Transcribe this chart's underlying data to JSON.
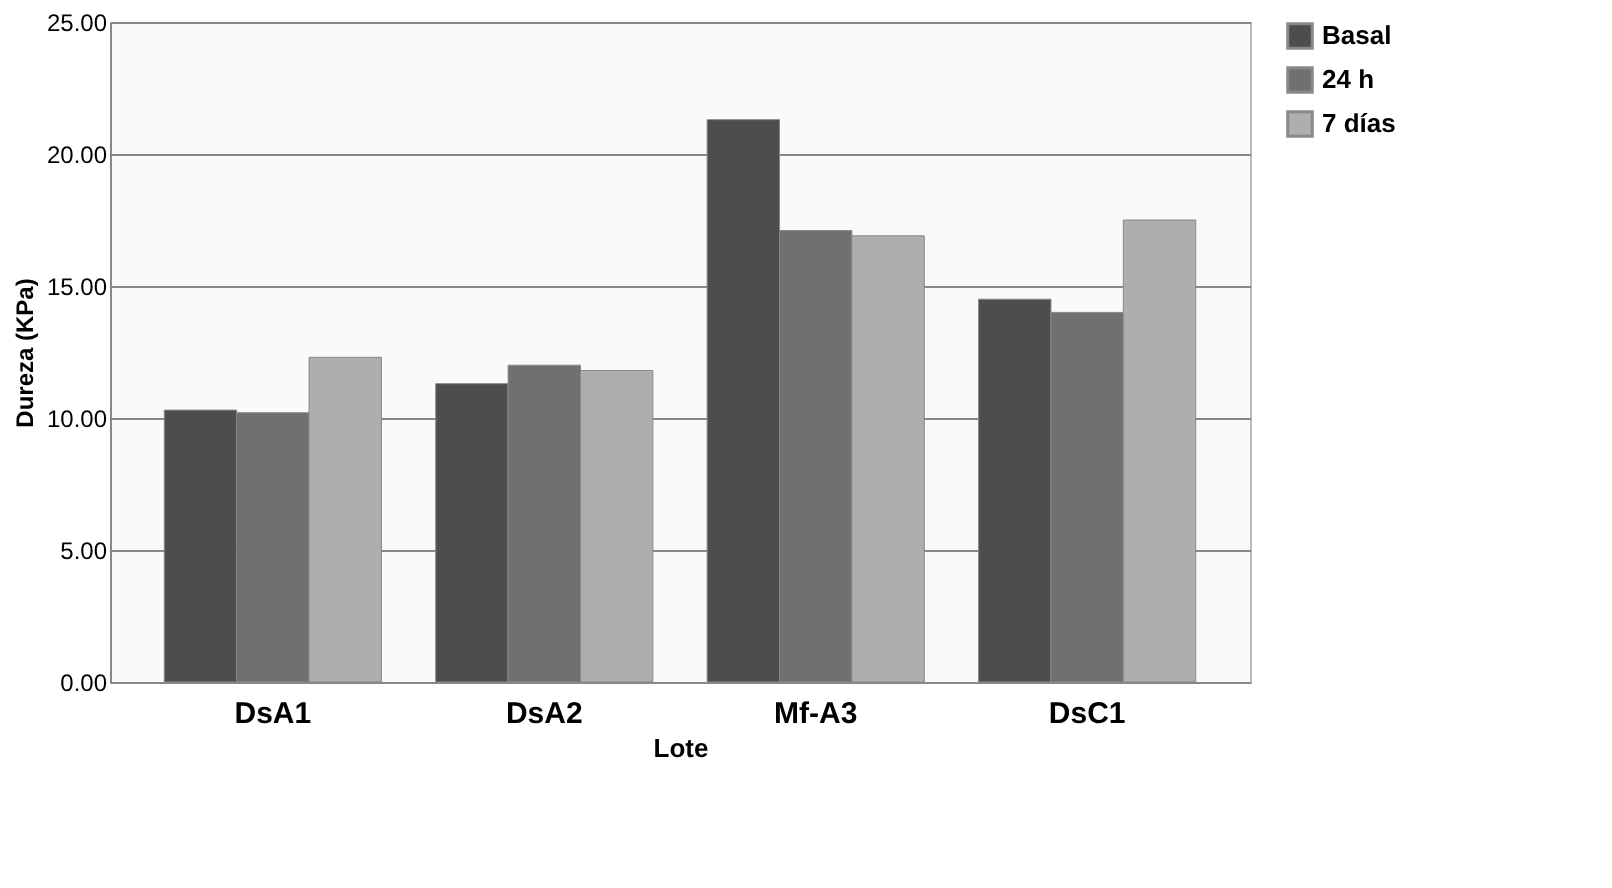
{
  "chart_data": {
    "type": "bar",
    "xlabel": "Lote",
    "ylabel": "Dureza (KPa)",
    "categories": [
      "DsA1",
      "DsA2",
      "Mf-A3",
      "DsC1"
    ],
    "series": [
      {
        "name": "Basal",
        "color": "#4d4d4d",
        "values": [
          10.3,
          11.3,
          21.3,
          14.5
        ]
      },
      {
        "name": "24 h",
        "color": "#707070",
        "values": [
          10.2,
          12.0,
          17.1,
          14.0
        ]
      },
      {
        "name": "7 días",
        "color": "#aeaeae",
        "values": [
          12.3,
          11.8,
          16.9,
          17.5
        ]
      }
    ],
    "ylim": [
      0,
      25
    ],
    "yticks": [
      {
        "value": 0,
        "label": "0.00"
      },
      {
        "value": 5,
        "label": "5.00"
      },
      {
        "value": 10,
        "label": "10.00"
      },
      {
        "value": 15,
        "label": "15.00"
      },
      {
        "value": 20,
        "label": "20.00"
      },
      {
        "value": 25,
        "label": "25.00"
      }
    ],
    "grid": "y",
    "legend": "right"
  }
}
